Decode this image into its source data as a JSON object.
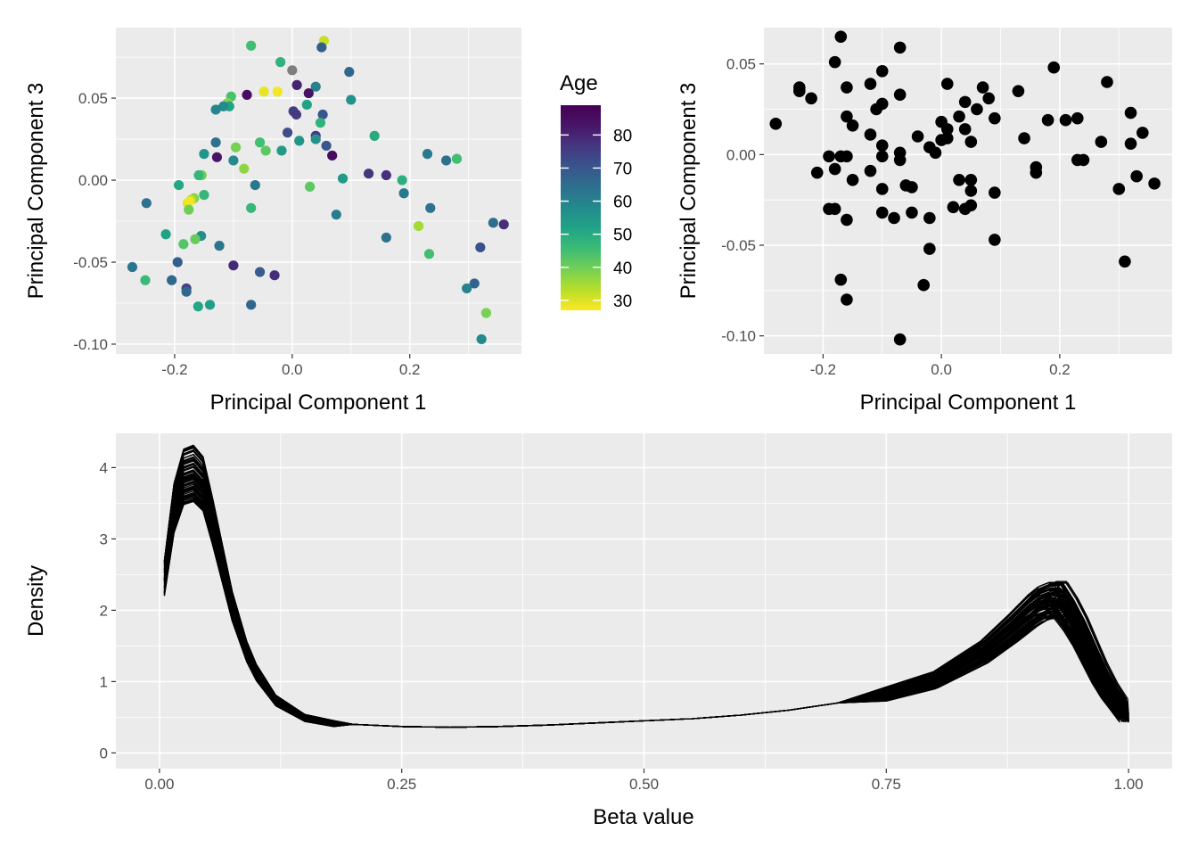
{
  "chart_data": [
    {
      "type": "scatter",
      "xlabel": "Principal Component 1",
      "ylabel": "Principal Component 3",
      "xlim": [
        -0.3,
        0.39
      ],
      "ylim": [
        -0.106,
        0.093
      ],
      "x_ticks": [
        -0.2,
        0.0,
        0.2
      ],
      "x_tick_labels": [
        "-0.2",
        "0.0",
        "0.2"
      ],
      "y_ticks": [
        -0.1,
        -0.05,
        0.0,
        0.05
      ],
      "y_tick_labels": [
        "-0.10",
        "-0.05",
        "0.00",
        "0.05"
      ],
      "grid": true,
      "color_by": "Age",
      "legend": {
        "title": "Age",
        "placement": "right",
        "range": [
          27,
          89
        ],
        "ticks": [
          30,
          40,
          50,
          60,
          70,
          80
        ],
        "tick_labels": [
          "30",
          "40",
          "50",
          "60",
          "70",
          "80"
        ],
        "palette": [
          "#FDE725",
          "#B8DE29",
          "#74D055",
          "#3CBC75",
          "#20A386",
          "#238A8D",
          "#2D708E",
          "#39558C",
          "#453781",
          "#481568",
          "#440154"
        ]
      },
      "missing_color": "#7F7F7F",
      "points": [
        {
          "x": -0.07,
          "y": 0.082,
          "age": 45
        },
        {
          "x": 0.054,
          "y": 0.085,
          "age": 32
        },
        {
          "x": 0.05,
          "y": 0.081,
          "age": 68
        },
        {
          "x": -0.02,
          "y": 0.072,
          "age": 48
        },
        {
          "x": 0.0,
          "y": 0.067,
          "age": null
        },
        {
          "x": 0.097,
          "y": 0.066,
          "age": 66
        },
        {
          "x": 0.008,
          "y": 0.058,
          "age": 80
        },
        {
          "x": 0.04,
          "y": 0.057,
          "age": 60
        },
        {
          "x": -0.048,
          "y": 0.054,
          "age": 29
        },
        {
          "x": -0.025,
          "y": 0.054,
          "age": 28
        },
        {
          "x": -0.077,
          "y": 0.052,
          "age": 85
        },
        {
          "x": -0.104,
          "y": 0.051,
          "age": 44
        },
        {
          "x": 0.028,
          "y": 0.053,
          "age": 84
        },
        {
          "x": 0.1,
          "y": 0.049,
          "age": 56
        },
        {
          "x": -0.11,
          "y": 0.047,
          "age": 38
        },
        {
          "x": -0.107,
          "y": 0.045,
          "age": 52
        },
        {
          "x": -0.117,
          "y": 0.045,
          "age": 58
        },
        {
          "x": 0.025,
          "y": 0.046,
          "age": 52
        },
        {
          "x": -0.13,
          "y": 0.043,
          "age": 59
        },
        {
          "x": 0.002,
          "y": 0.042,
          "age": 75
        },
        {
          "x": 0.007,
          "y": 0.04,
          "age": 76
        },
        {
          "x": 0.052,
          "y": 0.04,
          "age": 70
        },
        {
          "x": 0.048,
          "y": 0.035,
          "age": 48
        },
        {
          "x": -0.008,
          "y": 0.029,
          "age": 72
        },
        {
          "x": 0.04,
          "y": 0.027,
          "age": 76
        },
        {
          "x": 0.14,
          "y": 0.027,
          "age": 50
        },
        {
          "x": 0.04,
          "y": 0.025,
          "age": 56
        },
        {
          "x": -0.13,
          "y": 0.023,
          "age": 64
        },
        {
          "x": 0.012,
          "y": 0.024,
          "age": 55
        },
        {
          "x": -0.055,
          "y": 0.023,
          "age": 45
        },
        {
          "x": -0.096,
          "y": 0.02,
          "age": 39
        },
        {
          "x": 0.058,
          "y": 0.021,
          "age": 70
        },
        {
          "x": -0.045,
          "y": 0.018,
          "age": 42
        },
        {
          "x": -0.018,
          "y": 0.018,
          "age": 54
        },
        {
          "x": -0.15,
          "y": 0.016,
          "age": 55
        },
        {
          "x": 0.23,
          "y": 0.016,
          "age": 62
        },
        {
          "x": 0.068,
          "y": 0.015,
          "age": 86
        },
        {
          "x": -0.128,
          "y": 0.014,
          "age": 83
        },
        {
          "x": -0.1,
          "y": 0.012,
          "age": 58
        },
        {
          "x": 0.262,
          "y": 0.012,
          "age": 64
        },
        {
          "x": 0.28,
          "y": 0.013,
          "age": 45
        },
        {
          "x": -0.082,
          "y": 0.007,
          "age": 37
        },
        {
          "x": -0.154,
          "y": 0.003,
          "age": 40
        },
        {
          "x": -0.159,
          "y": 0.003,
          "age": 47
        },
        {
          "x": 0.13,
          "y": 0.004,
          "age": 77
        },
        {
          "x": 0.16,
          "y": 0.003,
          "age": 78
        },
        {
          "x": 0.086,
          "y": 0.001,
          "age": 54
        },
        {
          "x": 0.187,
          "y": 0.0,
          "age": 49
        },
        {
          "x": -0.063,
          "y": -0.003,
          "age": 62
        },
        {
          "x": 0.03,
          "y": -0.004,
          "age": 42
        },
        {
          "x": -0.193,
          "y": -0.003,
          "age": 51
        },
        {
          "x": 0.19,
          "y": -0.008,
          "age": 62
        },
        {
          "x": -0.15,
          "y": -0.009,
          "age": 47
        },
        {
          "x": -0.167,
          "y": -0.011,
          "age": 38
        },
        {
          "x": -0.172,
          "y": -0.012,
          "age": 33
        },
        {
          "x": -0.178,
          "y": -0.014,
          "age": 30
        },
        {
          "x": -0.175,
          "y": -0.013,
          "age": 28
        },
        {
          "x": -0.248,
          "y": -0.014,
          "age": 64
        },
        {
          "x": -0.176,
          "y": -0.018,
          "age": 40
        },
        {
          "x": -0.07,
          "y": -0.017,
          "age": 47
        },
        {
          "x": 0.235,
          "y": -0.017,
          "age": 64
        },
        {
          "x": 0.075,
          "y": -0.021,
          "age": 61
        },
        {
          "x": 0.215,
          "y": -0.028,
          "age": 35
        },
        {
          "x": -0.215,
          "y": -0.033,
          "age": 52
        },
        {
          "x": -0.155,
          "y": -0.034,
          "age": 57
        },
        {
          "x": 0.16,
          "y": -0.035,
          "age": 64
        },
        {
          "x": -0.165,
          "y": -0.036,
          "age": 41
        },
        {
          "x": -0.185,
          "y": -0.039,
          "age": 43
        },
        {
          "x": 0.342,
          "y": -0.026,
          "age": 65
        },
        {
          "x": 0.36,
          "y": -0.027,
          "age": 78
        },
        {
          "x": -0.124,
          "y": -0.04,
          "age": 63
        },
        {
          "x": 0.32,
          "y": -0.041,
          "age": 71
        },
        {
          "x": 0.233,
          "y": -0.045,
          "age": 45
        },
        {
          "x": -0.195,
          "y": -0.05,
          "age": 68
        },
        {
          "x": -0.1,
          "y": -0.052,
          "age": 79
        },
        {
          "x": -0.272,
          "y": -0.053,
          "age": 63
        },
        {
          "x": -0.055,
          "y": -0.056,
          "age": 69
        },
        {
          "x": -0.03,
          "y": -0.058,
          "age": 78
        },
        {
          "x": -0.205,
          "y": -0.061,
          "age": 66
        },
        {
          "x": -0.25,
          "y": -0.061,
          "age": 46
        },
        {
          "x": 0.31,
          "y": -0.063,
          "age": 67
        },
        {
          "x": 0.297,
          "y": -0.066,
          "age": 60
        },
        {
          "x": -0.18,
          "y": -0.066,
          "age": 75
        },
        {
          "x": -0.18,
          "y": -0.068,
          "age": 66
        },
        {
          "x": -0.07,
          "y": -0.076,
          "age": 66
        },
        {
          "x": -0.14,
          "y": -0.076,
          "age": 53
        },
        {
          "x": -0.16,
          "y": -0.077,
          "age": 51
        },
        {
          "x": 0.33,
          "y": -0.081,
          "age": 39
        },
        {
          "x": 0.322,
          "y": -0.097,
          "age": 58
        }
      ]
    },
    {
      "type": "scatter",
      "xlabel": "Principal Component 1",
      "ylabel": "Principal Component 3",
      "xlim": [
        -0.3,
        0.39
      ],
      "ylim": [
        -0.11,
        0.07
      ],
      "x_ticks": [
        -0.2,
        0.0,
        0.2
      ],
      "x_tick_labels": [
        "-0.2",
        "0.0",
        "0.2"
      ],
      "y_ticks": [
        -0.1,
        -0.05,
        0.0,
        0.05
      ],
      "y_tick_labels": [
        "-0.10",
        "-0.05",
        "0.00",
        "0.05"
      ],
      "grid": true,
      "point_color": "#000000",
      "points": [
        {
          "x": -0.17,
          "y": 0.065
        },
        {
          "x": -0.07,
          "y": 0.059
        },
        {
          "x": -0.18,
          "y": 0.051
        },
        {
          "x": 0.19,
          "y": 0.048
        },
        {
          "x": -0.1,
          "y": 0.046
        },
        {
          "x": 0.28,
          "y": 0.04
        },
        {
          "x": -0.12,
          "y": 0.039
        },
        {
          "x": 0.01,
          "y": 0.039
        },
        {
          "x": 0.07,
          "y": 0.037
        },
        {
          "x": -0.24,
          "y": 0.037
        },
        {
          "x": -0.16,
          "y": 0.037
        },
        {
          "x": -0.24,
          "y": 0.035
        },
        {
          "x": 0.13,
          "y": 0.035
        },
        {
          "x": -0.07,
          "y": 0.033
        },
        {
          "x": 0.08,
          "y": 0.031
        },
        {
          "x": -0.22,
          "y": 0.031
        },
        {
          "x": 0.04,
          "y": 0.029
        },
        {
          "x": -0.1,
          "y": 0.028
        },
        {
          "x": 0.06,
          "y": 0.025
        },
        {
          "x": -0.11,
          "y": 0.025
        },
        {
          "x": 0.32,
          "y": 0.023
        },
        {
          "x": 0.03,
          "y": 0.021
        },
        {
          "x": -0.16,
          "y": 0.021
        },
        {
          "x": 0.09,
          "y": 0.02
        },
        {
          "x": 0.23,
          "y": 0.02
        },
        {
          "x": 0.18,
          "y": 0.019
        },
        {
          "x": 0.21,
          "y": 0.019
        },
        {
          "x": 0.0,
          "y": 0.018
        },
        {
          "x": -0.28,
          "y": 0.017
        },
        {
          "x": -0.15,
          "y": 0.016
        },
        {
          "x": 0.04,
          "y": 0.014
        },
        {
          "x": 0.01,
          "y": 0.014
        },
        {
          "x": 0.34,
          "y": 0.012
        },
        {
          "x": -0.12,
          "y": 0.011
        },
        {
          "x": -0.04,
          "y": 0.01
        },
        {
          "x": 0.01,
          "y": 0.009
        },
        {
          "x": 0.14,
          "y": 0.009
        },
        {
          "x": 0.0,
          "y": 0.008
        },
        {
          "x": 0.05,
          "y": 0.007
        },
        {
          "x": 0.27,
          "y": 0.007
        },
        {
          "x": 0.32,
          "y": 0.006
        },
        {
          "x": -0.1,
          "y": 0.005
        },
        {
          "x": -0.02,
          "y": 0.004
        },
        {
          "x": -0.01,
          "y": 0.001
        },
        {
          "x": -0.07,
          "y": 0.001
        },
        {
          "x": -0.16,
          "y": -0.001
        },
        {
          "x": -0.17,
          "y": -0.001
        },
        {
          "x": -0.19,
          "y": -0.001
        },
        {
          "x": -0.1,
          "y": -0.001
        },
        {
          "x": -0.07,
          "y": -0.003
        },
        {
          "x": 0.23,
          "y": -0.003
        },
        {
          "x": 0.24,
          "y": -0.003
        },
        {
          "x": 0.16,
          "y": -0.007
        },
        {
          "x": -0.18,
          "y": -0.008
        },
        {
          "x": -0.12,
          "y": -0.009
        },
        {
          "x": -0.21,
          "y": -0.01
        },
        {
          "x": 0.16,
          "y": -0.01
        },
        {
          "x": -0.15,
          "y": -0.014
        },
        {
          "x": 0.03,
          "y": -0.014
        },
        {
          "x": 0.05,
          "y": -0.014
        },
        {
          "x": -0.06,
          "y": -0.017
        },
        {
          "x": 0.36,
          "y": -0.016
        },
        {
          "x": 0.33,
          "y": -0.012
        },
        {
          "x": -0.05,
          "y": -0.018
        },
        {
          "x": 0.3,
          "y": -0.019
        },
        {
          "x": -0.1,
          "y": -0.019
        },
        {
          "x": 0.05,
          "y": -0.02
        },
        {
          "x": 0.09,
          "y": -0.021
        },
        {
          "x": -0.19,
          "y": -0.03
        },
        {
          "x": -0.18,
          "y": -0.03
        },
        {
          "x": 0.05,
          "y": -0.028
        },
        {
          "x": 0.02,
          "y": -0.029
        },
        {
          "x": 0.04,
          "y": -0.03
        },
        {
          "x": -0.1,
          "y": -0.032
        },
        {
          "x": -0.05,
          "y": -0.032
        },
        {
          "x": -0.08,
          "y": -0.035
        },
        {
          "x": -0.02,
          "y": -0.035
        },
        {
          "x": -0.16,
          "y": -0.036
        },
        {
          "x": 0.09,
          "y": -0.047
        },
        {
          "x": -0.02,
          "y": -0.052
        },
        {
          "x": 0.31,
          "y": -0.059
        },
        {
          "x": -0.17,
          "y": -0.069
        },
        {
          "x": -0.03,
          "y": -0.072
        },
        {
          "x": -0.16,
          "y": -0.08
        },
        {
          "x": -0.07,
          "y": -0.102
        }
      ]
    },
    {
      "type": "line",
      "xlabel": "Beta value",
      "ylabel": "Density",
      "xlim": [
        -0.045,
        1.045
      ],
      "ylim": [
        -0.22,
        4.48
      ],
      "x_ticks": [
        0.0,
        0.25,
        0.5,
        0.75,
        1.0
      ],
      "x_tick_labels": [
        "0.00",
        "0.25",
        "0.50",
        "0.75",
        "1.00"
      ],
      "y_ticks": [
        0,
        1,
        2,
        3,
        4
      ],
      "y_tick_labels": [
        "0",
        "1",
        "2",
        "3",
        "4"
      ],
      "grid": true,
      "line_color": "#000000",
      "description_curves": "one density curve per sample",
      "curve_template": {
        "x": [
          0.005,
          0.015,
          0.025,
          0.035,
          0.045,
          0.055,
          0.065,
          0.075,
          0.09,
          0.1,
          0.12,
          0.15,
          0.18,
          0.2,
          0.25,
          0.3,
          0.35,
          0.4,
          0.45,
          0.5,
          0.55,
          0.6,
          0.65,
          0.7,
          0.75,
          0.8,
          0.85,
          0.88,
          0.9,
          0.91,
          0.92,
          0.93,
          0.94,
          0.95,
          0.96,
          0.97,
          0.98,
          0.99,
          1.0
        ],
        "y": [
          2.5,
          3.5,
          3.95,
          4.0,
          3.85,
          3.3,
          2.7,
          2.1,
          1.45,
          1.15,
          0.75,
          0.5,
          0.42,
          0.4,
          0.37,
          0.36,
          0.37,
          0.39,
          0.42,
          0.45,
          0.48,
          0.53,
          0.6,
          0.7,
          0.85,
          1.05,
          1.45,
          1.8,
          2.05,
          2.15,
          2.2,
          2.2,
          2.0,
          1.75,
          1.45,
          1.15,
          0.9,
          0.7,
          0.5
        ]
      },
      "num_samples": 90
    }
  ]
}
